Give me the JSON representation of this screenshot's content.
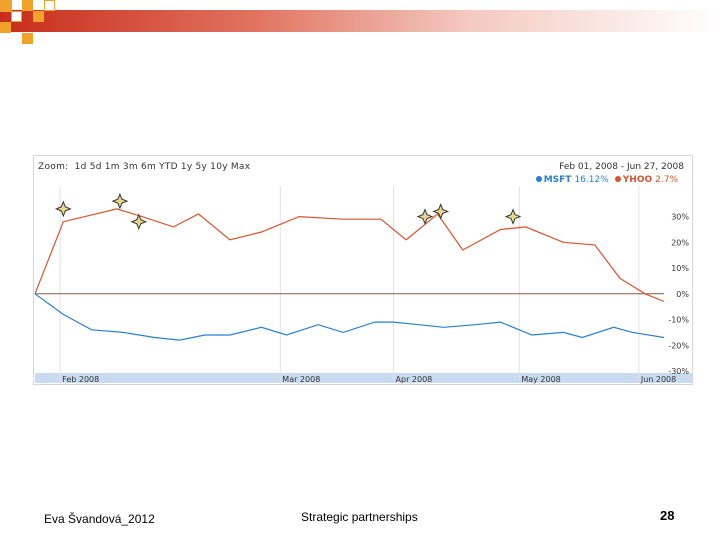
{
  "slide": {
    "footer_left": "Eva Švandová_2012",
    "footer_center": "Strategic partnerships",
    "page_number": "28",
    "accent_color": "#c92c1a",
    "deco_color": "#f0a22a"
  },
  "chart_data": {
    "type": "line",
    "zoom_label": "Zoom:",
    "zoom_options": [
      "1d",
      "5d",
      "1m",
      "3m",
      "6m",
      "YTD",
      "1y",
      "5y",
      "10y",
      "Max"
    ],
    "date_range": "Feb 01, 2008 - Jun 27, 2008",
    "legend": [
      {
        "name": "MSFT",
        "value": "16.12%",
        "color": "#2a7fd4"
      },
      {
        "name": "YHOO",
        "value": "2.7%",
        "color": "#d9542c"
      }
    ],
    "x_tick_labels": [
      "Feb 2008",
      "Mar 2008",
      "Apr 2008",
      "May 2008",
      "Jun 2008"
    ],
    "x_ticks_pos": [
      0.04,
      0.39,
      0.57,
      0.77,
      0.96
    ],
    "x_range": [
      0,
      1
    ],
    "y_tick_labels": [
      "30%",
      "20%",
      "10%",
      "0%",
      "-10%",
      "-20%",
      "-30%"
    ],
    "y_ticks": [
      30,
      20,
      10,
      0,
      -10,
      -20,
      -30
    ],
    "ylim": [
      -30,
      38
    ],
    "grid": "vertical",
    "series": [
      {
        "name": "YHOO",
        "color": "#d9542c",
        "x": [
          0,
          0.045,
          0.13,
          0.17,
          0.22,
          0.26,
          0.31,
          0.36,
          0.42,
          0.49,
          0.55,
          0.59,
          0.64,
          0.68,
          0.74,
          0.78,
          0.84,
          0.89,
          0.93,
          0.97,
          1
        ],
        "values": [
          0,
          28,
          33,
          30,
          26,
          31,
          21,
          24,
          30,
          29,
          29,
          21,
          31,
          17,
          25,
          26,
          20,
          19,
          6,
          0,
          -3
        ]
      },
      {
        "name": "MSFT",
        "color": "#2a7fd4",
        "x": [
          0,
          0.045,
          0.09,
          0.14,
          0.19,
          0.23,
          0.27,
          0.31,
          0.36,
          0.4,
          0.45,
          0.49,
          0.54,
          0.57,
          0.61,
          0.65,
          0.7,
          0.74,
          0.79,
          0.84,
          0.87,
          0.92,
          0.95,
          1
        ],
        "values": [
          0,
          -8,
          -14,
          -15,
          -17,
          -18,
          -16,
          -16,
          -13,
          -16,
          -12,
          -15,
          -11,
          -11,
          -12,
          -13,
          -12,
          -11,
          -16,
          -15,
          -17,
          -13,
          -15,
          -17
        ]
      }
    ],
    "event_markers": [
      {
        "x": 0.045,
        "y": 33
      },
      {
        "x": 0.135,
        "y": 36
      },
      {
        "x": 0.165,
        "y": 28
      },
      {
        "x": 0.62,
        "y": 30
      },
      {
        "x": 0.645,
        "y": 32
      },
      {
        "x": 0.76,
        "y": 30
      }
    ]
  }
}
